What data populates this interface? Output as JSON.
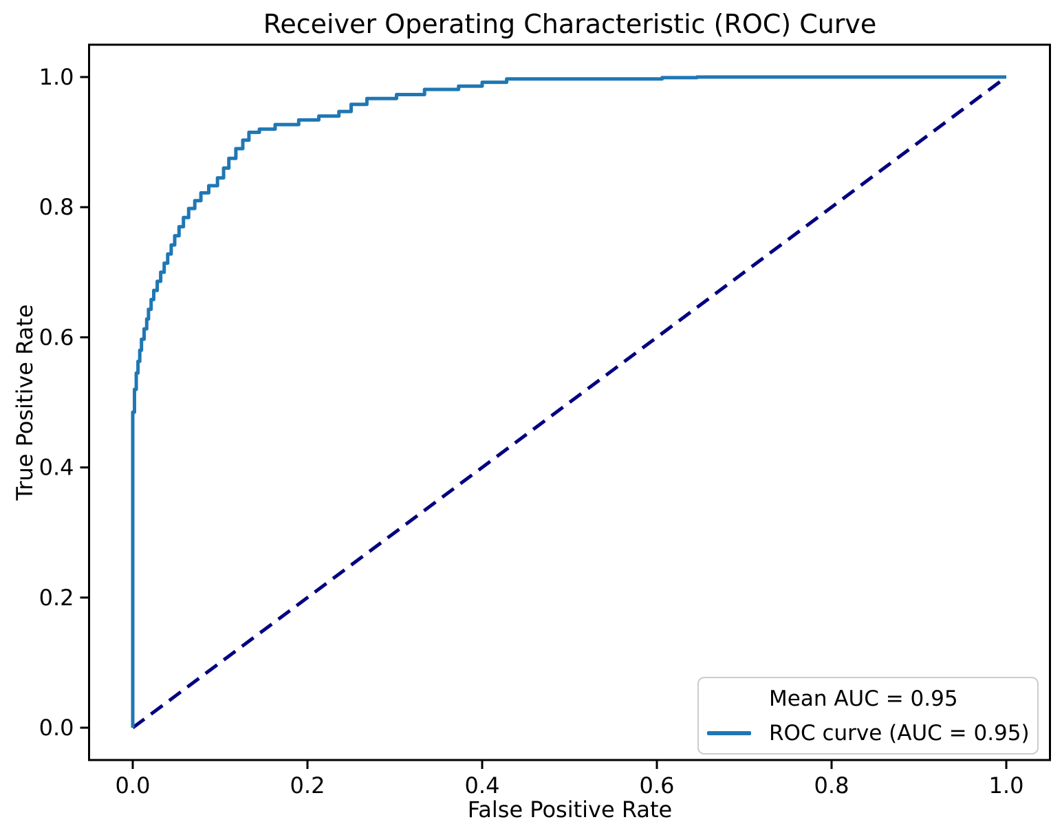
{
  "chart_data": {
    "type": "line",
    "title": "Receiver Operating Characteristic (ROC) Curve",
    "xlabel": "False Positive Rate",
    "ylabel": "True Positive Rate",
    "xlim": [
      -0.05,
      1.05
    ],
    "ylim": [
      -0.05,
      1.05
    ],
    "x_ticks": [
      0.0,
      0.2,
      0.4,
      0.6,
      0.8,
      1.0
    ],
    "y_ticks": [
      0.0,
      0.2,
      0.4,
      0.6,
      0.8,
      1.0
    ],
    "tick_format_decimals": 1,
    "grid": false,
    "axis_color": "#000000",
    "mean_auc": 0.95,
    "legend": {
      "position": "lower right",
      "entries": [
        {
          "label": "Mean AUC = 0.95",
          "marker": "none"
        },
        {
          "label": "ROC curve (AUC = 0.95)",
          "marker": "line",
          "color": "#1f77b4"
        }
      ]
    },
    "series": [
      {
        "name": "ROC curve (AUC = 0.95)",
        "color": "#1f77b4",
        "style": "solid",
        "line_width": 5,
        "points": [
          [
            0.0,
            0.0
          ],
          [
            0.0,
            0.485
          ],
          [
            0.002,
            0.485
          ],
          [
            0.002,
            0.52
          ],
          [
            0.004,
            0.52
          ],
          [
            0.004,
            0.545
          ],
          [
            0.006,
            0.545
          ],
          [
            0.006,
            0.563
          ],
          [
            0.008,
            0.563
          ],
          [
            0.008,
            0.58
          ],
          [
            0.01,
            0.58
          ],
          [
            0.01,
            0.597
          ],
          [
            0.013,
            0.597
          ],
          [
            0.013,
            0.613
          ],
          [
            0.016,
            0.613
          ],
          [
            0.016,
            0.628
          ],
          [
            0.018,
            0.628
          ],
          [
            0.018,
            0.643
          ],
          [
            0.021,
            0.643
          ],
          [
            0.021,
            0.658
          ],
          [
            0.024,
            0.658
          ],
          [
            0.024,
            0.672
          ],
          [
            0.028,
            0.672
          ],
          [
            0.028,
            0.686
          ],
          [
            0.032,
            0.686
          ],
          [
            0.032,
            0.7
          ],
          [
            0.036,
            0.7
          ],
          [
            0.036,
            0.714
          ],
          [
            0.04,
            0.714
          ],
          [
            0.04,
            0.728
          ],
          [
            0.044,
            0.728
          ],
          [
            0.044,
            0.742
          ],
          [
            0.048,
            0.742
          ],
          [
            0.048,
            0.756
          ],
          [
            0.053,
            0.756
          ],
          [
            0.053,
            0.77
          ],
          [
            0.058,
            0.77
          ],
          [
            0.058,
            0.784
          ],
          [
            0.064,
            0.784
          ],
          [
            0.064,
            0.798
          ],
          [
            0.071,
            0.798
          ],
          [
            0.071,
            0.81
          ],
          [
            0.078,
            0.81
          ],
          [
            0.078,
            0.822
          ],
          [
            0.087,
            0.822
          ],
          [
            0.087,
            0.833
          ],
          [
            0.097,
            0.833
          ],
          [
            0.097,
            0.845
          ],
          [
            0.104,
            0.845
          ],
          [
            0.104,
            0.86
          ],
          [
            0.11,
            0.86
          ],
          [
            0.11,
            0.875
          ],
          [
            0.118,
            0.875
          ],
          [
            0.118,
            0.89
          ],
          [
            0.126,
            0.89
          ],
          [
            0.126,
            0.903
          ],
          [
            0.133,
            0.903
          ],
          [
            0.133,
            0.915
          ],
          [
            0.145,
            0.915
          ],
          [
            0.145,
            0.92
          ],
          [
            0.163,
            0.92
          ],
          [
            0.163,
            0.927
          ],
          [
            0.19,
            0.927
          ],
          [
            0.19,
            0.934
          ],
          [
            0.213,
            0.934
          ],
          [
            0.213,
            0.94
          ],
          [
            0.236,
            0.94
          ],
          [
            0.236,
            0.947
          ],
          [
            0.25,
            0.947
          ],
          [
            0.25,
            0.958
          ],
          [
            0.268,
            0.958
          ],
          [
            0.268,
            0.967
          ],
          [
            0.302,
            0.967
          ],
          [
            0.302,
            0.973
          ],
          [
            0.334,
            0.973
          ],
          [
            0.334,
            0.981
          ],
          [
            0.373,
            0.981
          ],
          [
            0.373,
            0.986
          ],
          [
            0.4,
            0.986
          ],
          [
            0.4,
            0.992
          ],
          [
            0.428,
            0.992
          ],
          [
            0.428,
            0.997
          ],
          [
            0.606,
            0.997
          ],
          [
            0.606,
            0.999
          ],
          [
            0.646,
            0.999
          ],
          [
            0.646,
            1.0
          ],
          [
            1.0,
            1.0
          ]
        ]
      },
      {
        "name": "chance-diagonal",
        "color": "#000080",
        "style": "dashed",
        "line_width": 5,
        "points": [
          [
            0.0,
            0.0
          ],
          [
            1.0,
            1.0
          ]
        ]
      }
    ]
  }
}
